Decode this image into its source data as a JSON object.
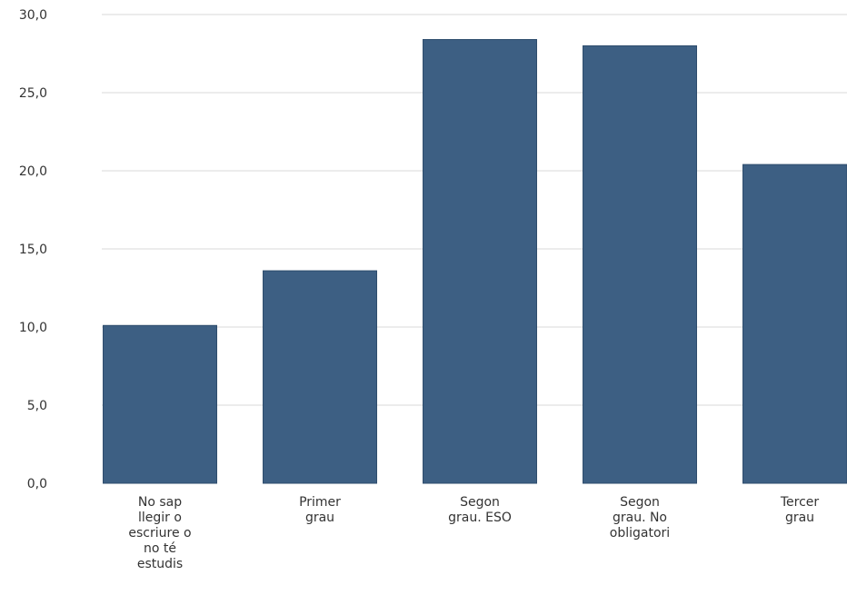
{
  "chart_data": {
    "type": "bar",
    "categories": [
      [
        "No sap",
        "llegir o",
        "escriure o",
        "no té",
        "estudis"
      ],
      [
        "Primer",
        "grau"
      ],
      [
        "Segon",
        "grau. ESO"
      ],
      [
        "Segon",
        "grau. No",
        "obligatori"
      ],
      [
        "Tercer",
        "grau"
      ]
    ],
    "values": [
      10.1,
      13.6,
      28.4,
      28.0,
      20.4
    ],
    "ylim": [
      0,
      30
    ],
    "yticks": [
      "0,0",
      "5,0",
      "10,0",
      "15,0",
      "20,0",
      "25,0",
      "30,0"
    ],
    "grid": true,
    "bar_color": "#3d5f83",
    "grid_color": "#d9d9d9"
  }
}
